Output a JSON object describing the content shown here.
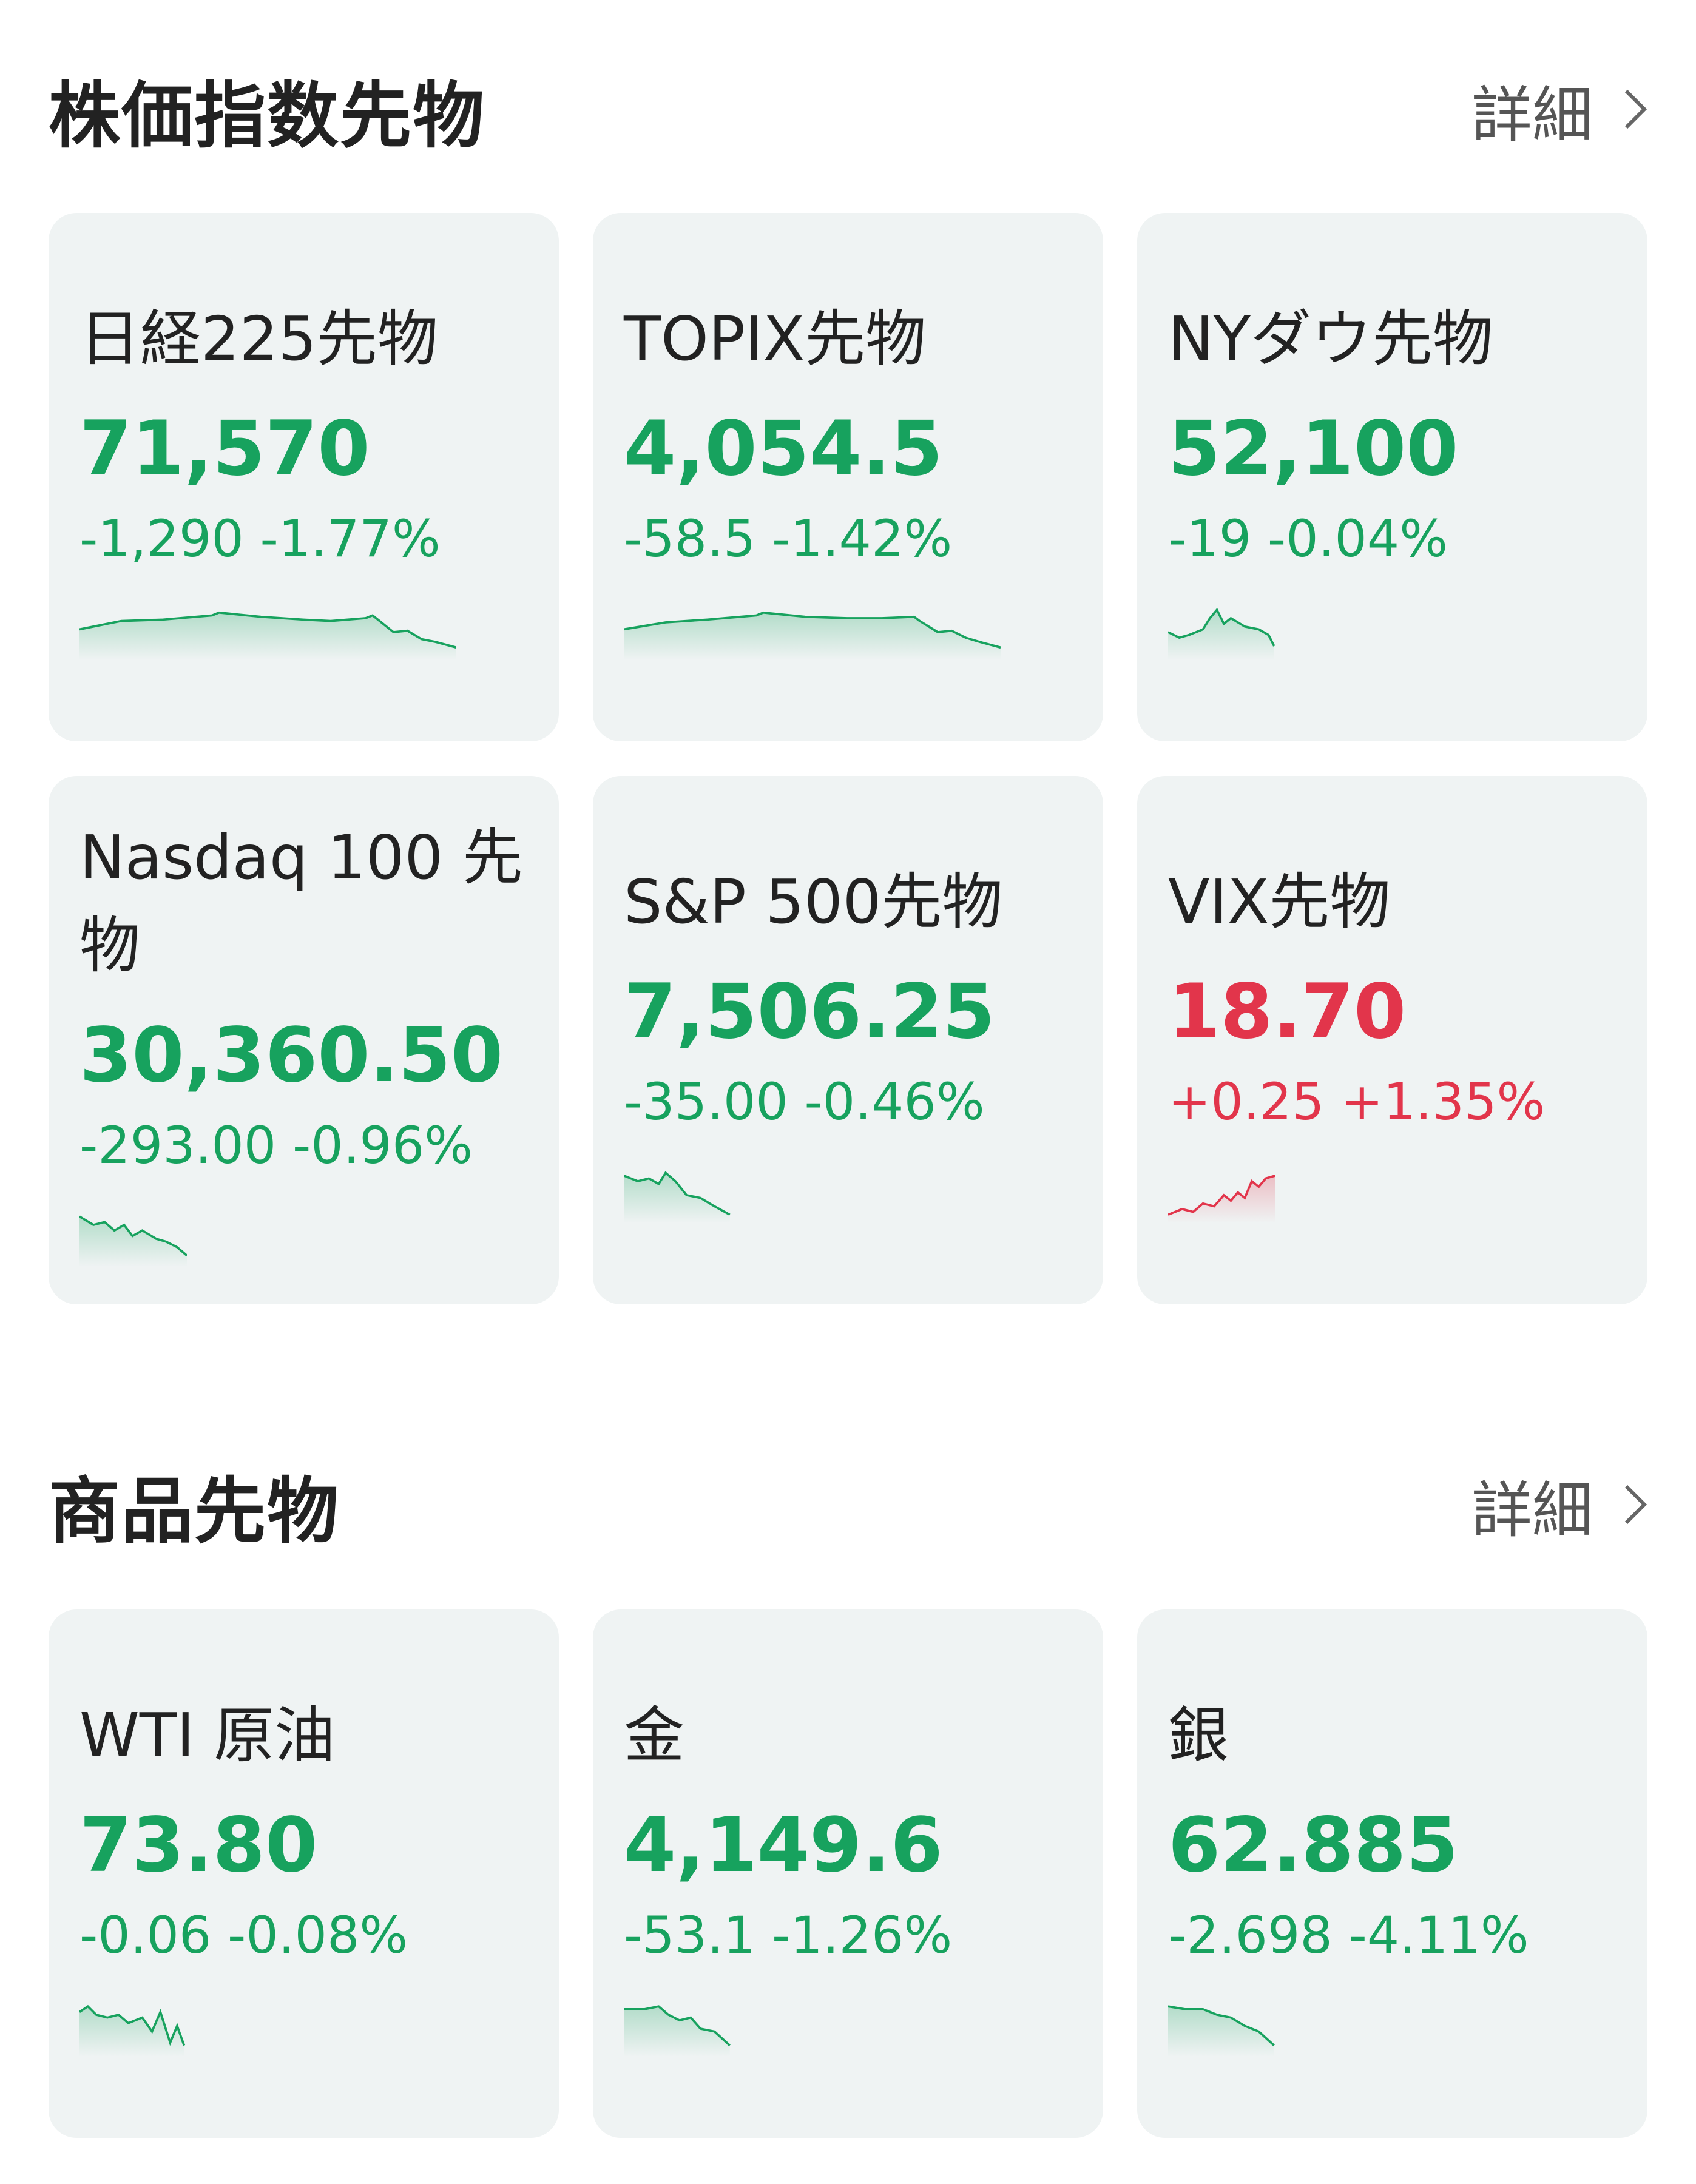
{
  "sections": [
    {
      "title": "株価指数先物",
      "detail": "詳細",
      "cards": [
        {
          "name": "日経225先物",
          "price": "71,570",
          "change": "-1,290",
          "percent": "-1.77%"
        },
        {
          "name": "TOPIX先物",
          "price": "4,054.5",
          "change": "-58.5",
          "percent": "-1.42%"
        },
        {
          "name": "NYダウ先物",
          "price": "52,100",
          "change": "-19",
          "percent": "-0.04%"
        },
        {
          "name": "Nasdaq 100 先物",
          "price": "30,360.50",
          "change": "-293.00",
          "percent": "-0.96%"
        },
        {
          "name": "S&P 500先物",
          "price": "7,506.25",
          "change": "-35.00",
          "percent": "-0.46%"
        },
        {
          "name": "VIX先物",
          "price": "18.70",
          "change": "+0.25",
          "percent": "+1.35%"
        }
      ]
    },
    {
      "title": "商品先物",
      "detail": "詳細",
      "cards": [
        {
          "name": "WTI 原油",
          "price": "73.80",
          "change": "-0.06",
          "percent": "-0.08%"
        },
        {
          "name": "金",
          "price": "4,149.6",
          "change": "-53.1",
          "percent": "-1.26%"
        },
        {
          "name": "銀",
          "price": "62.885",
          "change": "-2.698",
          "percent": "-4.11%"
        }
      ]
    }
  ]
}
